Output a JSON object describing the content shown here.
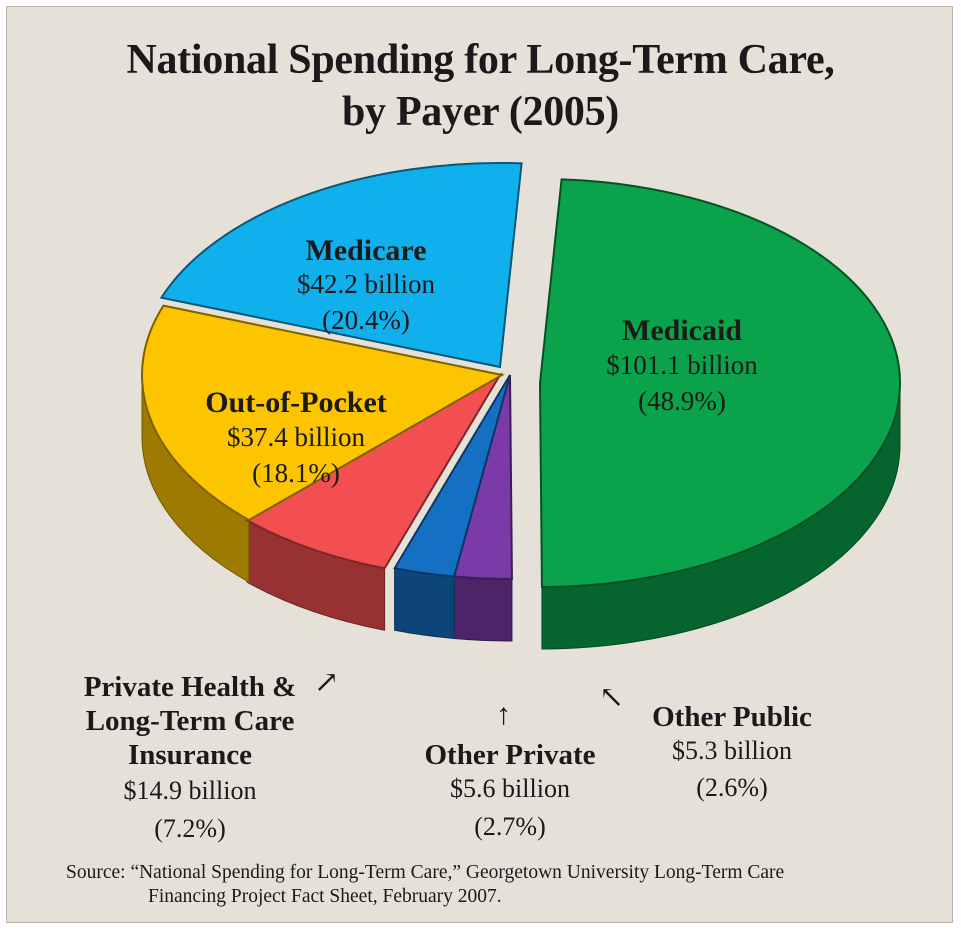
{
  "chart_data": {
    "type": "pie",
    "title_line1": "National Spending for Long-Term Care,",
    "title_line2": "by Payer (2005)",
    "slices": [
      {
        "name": "Medicaid",
        "amount": "$101.1 billion",
        "percent": "(48.9%)",
        "value": 101.1,
        "pct": 48.9,
        "color": "#0aa24a"
      },
      {
        "name": "Other Public",
        "amount": "$5.3 billion",
        "percent": "(2.6%)",
        "value": 5.3,
        "pct": 2.6,
        "color": "#7a3aa8"
      },
      {
        "name": "Other Private",
        "amount": "$5.6 billion",
        "percent": "(2.7%)",
        "value": 5.6,
        "pct": 2.7,
        "color": "#1570c4"
      },
      {
        "name_lines": [
          "Private Health &",
          "Long-Term Care",
          "Insurance"
        ],
        "amount": "$14.9 billion",
        "percent": "(7.2%)",
        "value": 14.9,
        "pct": 7.2,
        "color": "#f34f50"
      },
      {
        "name": "Out-of-Pocket",
        "amount": "$37.4 billion",
        "percent": "(18.1%)",
        "value": 37.4,
        "pct": 18.1,
        "color": "#fdc400"
      },
      {
        "name": "Medicare",
        "amount": "$42.2 billion",
        "percent": "(20.4%)",
        "value": 42.2,
        "pct": 20.4,
        "color": "#0fb0ec"
      }
    ],
    "source_line1": "Source: “National Spending for Long-Term Care,” Georgetown University Long-Term Care",
    "source_line2": "Financing Project Fact Sheet, February 2007."
  }
}
